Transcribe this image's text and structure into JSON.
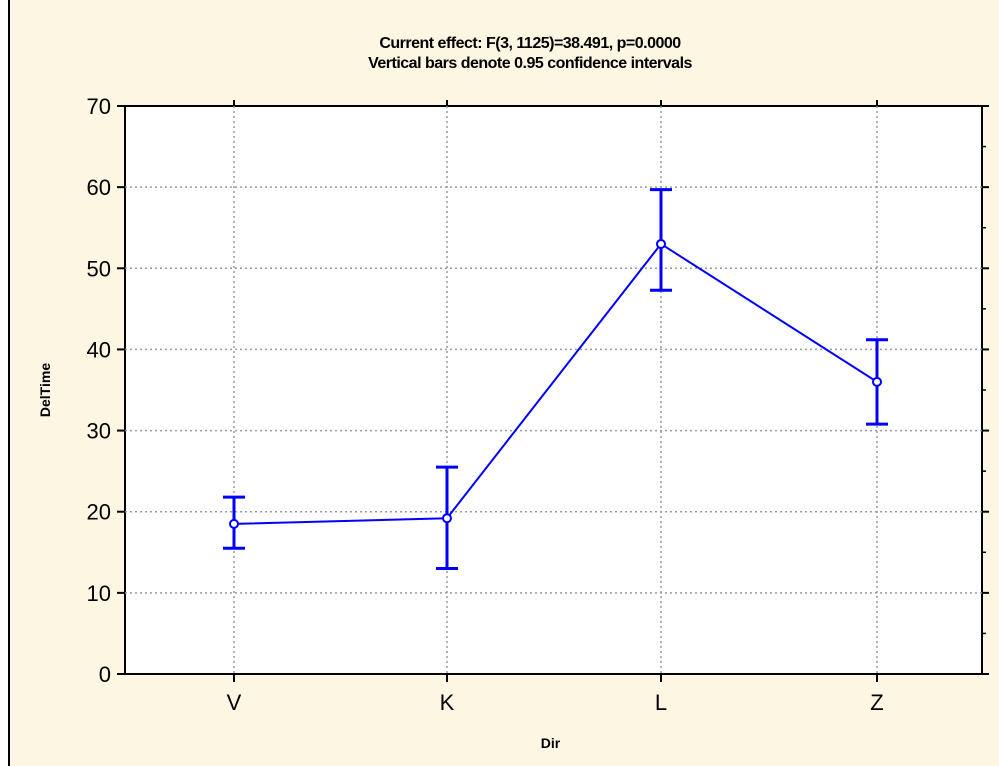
{
  "chart_data": {
    "type": "line",
    "title": "Current effect: F(3, 1125)=38.491, p=0.0000",
    "subtitle": "Vertical bars denote 0.95 confidence intervals",
    "xlabel": "Dir",
    "ylabel": "DelTime",
    "categories": [
      "V",
      "K",
      "L",
      "Z"
    ],
    "series": [
      {
        "values": [
          18.5,
          19.2,
          53.0,
          36.0
        ],
        "lower": [
          15.5,
          13.0,
          47.3,
          30.8
        ],
        "upper": [
          21.8,
          25.5,
          59.7,
          41.2
        ]
      }
    ],
    "ylim": [
      0,
      70
    ],
    "yticks": [
      0,
      10,
      20,
      30,
      40,
      50,
      60,
      70
    ],
    "grid": true,
    "colors": {
      "series": "#0000ff",
      "background": "#fdf6e3",
      "plot": "#ffffff",
      "grid": "#9a9a9a"
    }
  }
}
